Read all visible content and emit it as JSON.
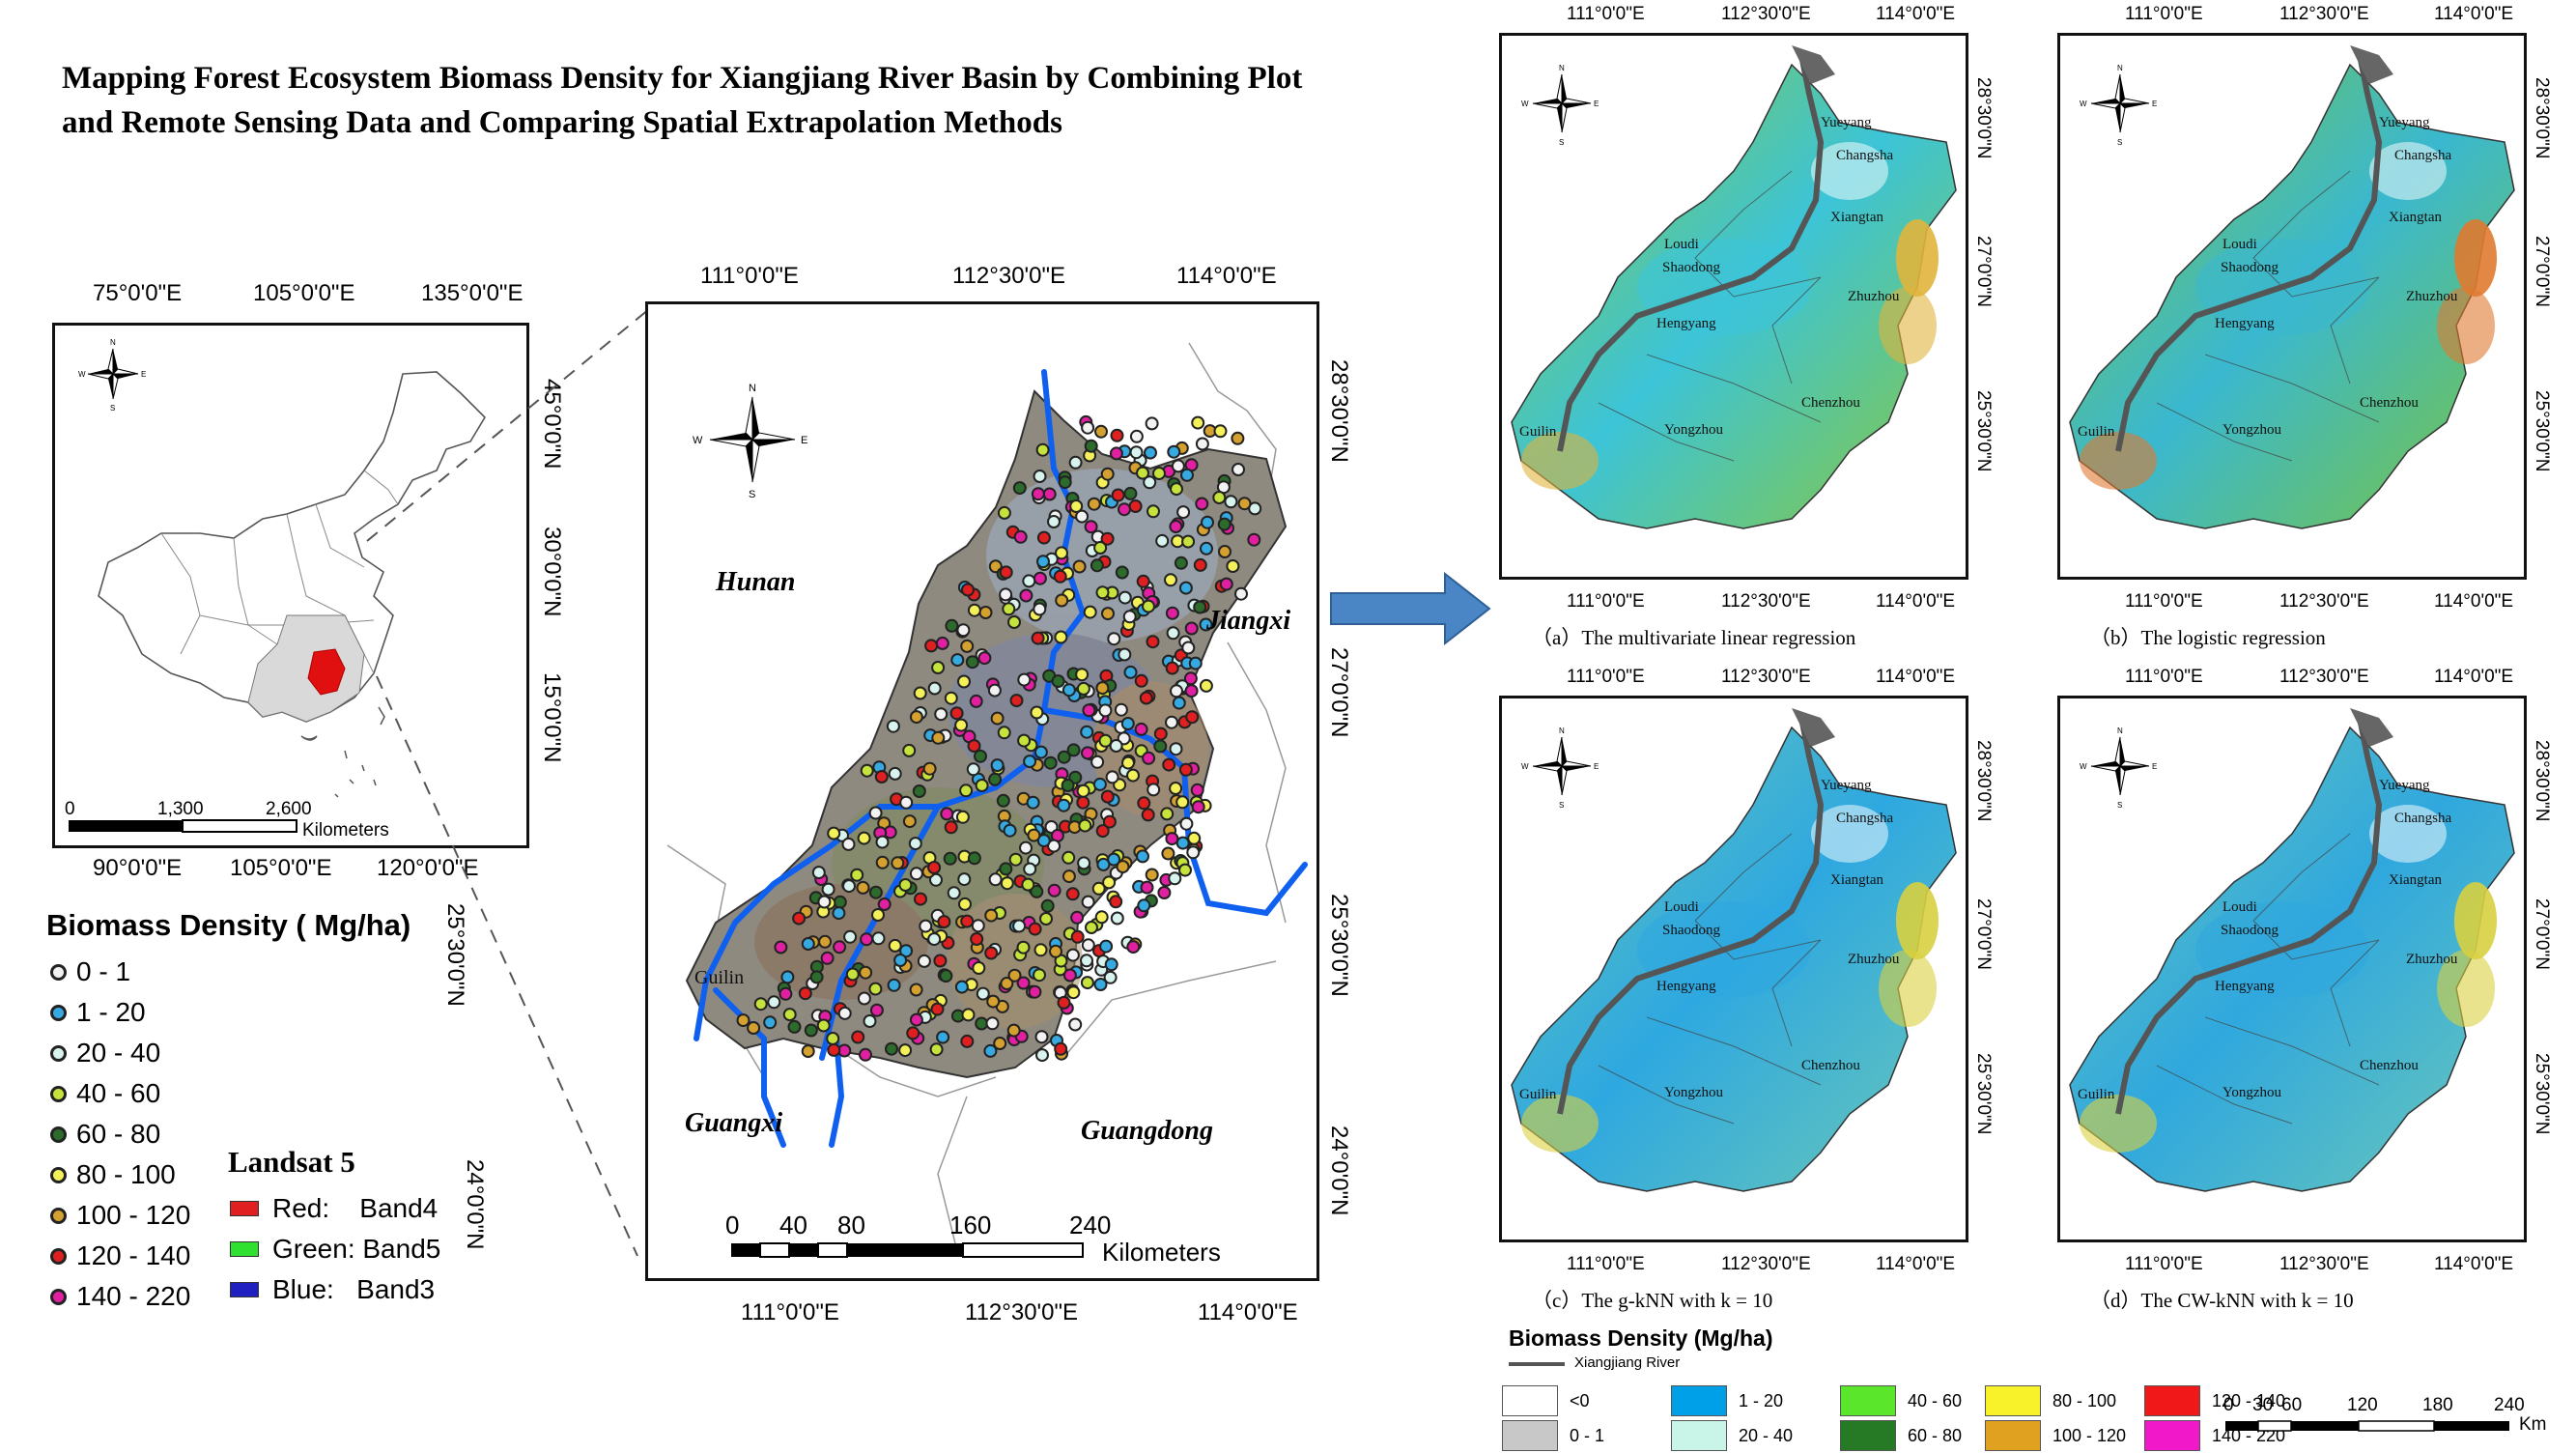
{
  "title": "Mapping Forest Ecosystem Biomass Density for Xiangjiang River Basin by Combining Plot and Remote Sensing Data and Comparing Spatial Extrapolation Methods",
  "china_map": {
    "top_ticks": [
      "75°0'0\"E",
      "105°0'0\"E",
      "135°0'0\"E"
    ],
    "bottom_ticks": [
      "90°0'0\"E",
      "105°0'0\"E",
      "120°0'0\"E"
    ],
    "right_ticks": [
      "45°0'0\"N",
      "30°0'0\"N",
      "15°0'0\"N"
    ],
    "scale_labels": [
      "0",
      "1,300",
      "2,600"
    ],
    "scale_unit": "Kilometers"
  },
  "sample_map": {
    "top_ticks": [
      "111°0'0\"E",
      "112°30'0\"E",
      "114°0'0\"E"
    ],
    "bottom_ticks": [
      "111°0'0\"E",
      "112°30'0\"E",
      "114°0'0\"E"
    ],
    "right_ticks": [
      "28°30'0\"N",
      "27°0'0\"N",
      "25°30'0\"N",
      "24°0'0\"N"
    ],
    "left_tick": "25°30'0\"N",
    "left_tick2": "24°0'0\"N",
    "regions": [
      "Hunan",
      "Jiangxi",
      "Guangxi",
      "Guangdong"
    ],
    "cities": [
      "Guilin"
    ],
    "scale_labels": [
      "0",
      "40",
      "80",
      "160",
      "240"
    ],
    "scale_unit": "Kilometers"
  },
  "plot_legend": {
    "title": "Biomass Density ( Mg/ha)",
    "items": [
      {
        "label": "0 - 1",
        "color": "#f2f2f2"
      },
      {
        "label": "1 - 20",
        "color": "#36a9e1"
      },
      {
        "label": "20 - 40",
        "color": "#d8f2ee"
      },
      {
        "label": "40 - 60",
        "color": "#c6e23d"
      },
      {
        "label": "60 - 80",
        "color": "#2d6b2d"
      },
      {
        "label": "80 - 100",
        "color": "#f3f05a"
      },
      {
        "label": "100 - 120",
        "color": "#d4a030"
      },
      {
        "label": "120 - 140",
        "color": "#e02020"
      },
      {
        "label": "140 - 220",
        "color": "#e020a0"
      }
    ]
  },
  "landsat": {
    "title": "Landsat 5",
    "bands": [
      {
        "label": "Red:    Band4",
        "color": "#e02020"
      },
      {
        "label": "Green: Band5",
        "color": "#30e030"
      },
      {
        "label": "Blue:   Band3",
        "color": "#2020c0"
      }
    ]
  },
  "panels": {
    "top_ticks": [
      "111°0'0\"E",
      "112°30'0\"E",
      "114°0'0\"E"
    ],
    "right_ticks": [
      "28°30'0\"N",
      "27°0'0\"N",
      "25°30'0\"N"
    ],
    "cities": [
      "Yueyang",
      "Changsha",
      "Xiangtan",
      "Loudi",
      "Shaodong",
      "Zhuzhou",
      "Hengyang",
      "Guilin",
      "Yongzhou",
      "Chenzhou"
    ],
    "captions": [
      "（a）The multivariate linear regression",
      "（b）The logistic regression",
      "（c）The g-kNN with k = 10",
      "（d）The CW-kNN with k = 10"
    ]
  },
  "bd_legend": {
    "title": "Biomass Density (Mg/ha)",
    "river_label": "Xiangjiang River",
    "items": [
      {
        "label": "<0",
        "color": "#ffffff"
      },
      {
        "label": "0 - 1",
        "color": "#c8c8c8"
      },
      {
        "label": "1 - 20",
        "color": "#00a0e8"
      },
      {
        "label": "20 - 40",
        "color": "#c8f5e8"
      },
      {
        "label": "40 - 60",
        "color": "#5ae62a"
      },
      {
        "label": "60 - 80",
        "color": "#267a26"
      },
      {
        "label": "80 - 100",
        "color": "#f8f22a"
      },
      {
        "label": "100 - 120",
        "color": "#e0a020"
      },
      {
        "label": "120 - 140",
        "color": "#f01818"
      },
      {
        "label": "140 - 220",
        "color": "#f018c8"
      }
    ],
    "scale_labels": [
      "0",
      "30",
      "60",
      "120",
      "180",
      "240"
    ],
    "scale_unit": "Km"
  }
}
